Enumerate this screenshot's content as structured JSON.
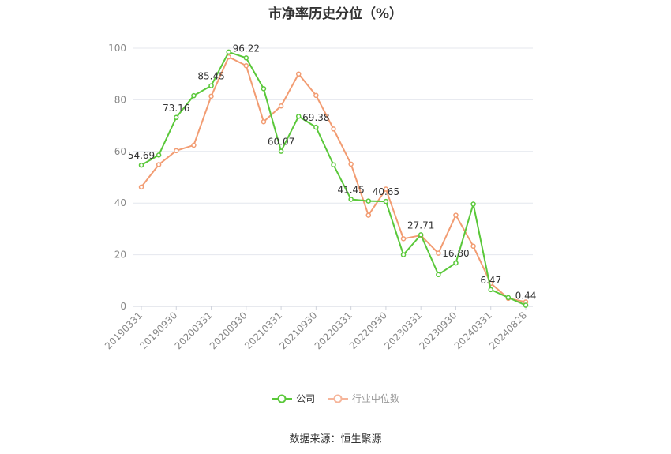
{
  "chart_data": {
    "type": "line",
    "title": "市净率历史分位（%）",
    "xlabel": "",
    "ylabel": "",
    "ylim": [
      0,
      100
    ],
    "yticks": [
      0,
      20,
      40,
      60,
      80,
      100
    ],
    "grid": true,
    "legend_position": "bottom",
    "x": [
      "20190331",
      "20190630",
      "20190930",
      "20191231",
      "20200331",
      "20200630",
      "20200930",
      "20201231",
      "20210331",
      "20210630",
      "20210930",
      "20211231",
      "20220331",
      "20220630",
      "20220930",
      "20221231",
      "20230331",
      "20230630",
      "20230930",
      "20231231",
      "20240331",
      "20240630",
      "20240828"
    ],
    "xtick_labels": [
      "20190331",
      "20190930",
      "20200331",
      "20200930",
      "20210331",
      "20210930",
      "20220331",
      "20220930",
      "20230331",
      "20230930",
      "20240331",
      "20240828"
    ],
    "series": [
      {
        "name": "公司",
        "color": "#5ac83a",
        "values": [
          54.69,
          58.6,
          73.16,
          81.6,
          85.45,
          98.5,
          96.22,
          84.3,
          60.07,
          73.6,
          69.38,
          54.8,
          41.45,
          40.8,
          40.65,
          20.0,
          27.71,
          12.3,
          16.8,
          39.6,
          6.47,
          3.4,
          0.44
        ],
        "labels": {
          "0": "54.69",
          "2": "73.16",
          "4": "85.45",
          "6": "96.22",
          "8": "60.07",
          "10": "69.38",
          "12": "41.45",
          "14": "40.65",
          "16": "27.71",
          "18": "16.80",
          "20": "6.47",
          "22": "0.44"
        }
      },
      {
        "name": "行业中位数",
        "color": "#f29c72",
        "values": [
          46.2,
          54.9,
          60.3,
          62.4,
          81.4,
          96.6,
          93.2,
          71.5,
          77.6,
          90.0,
          81.7,
          68.7,
          55.1,
          35.3,
          45.4,
          26.2,
          27.5,
          20.6,
          35.3,
          23.3,
          8.9,
          3.1,
          1.7
        ]
      }
    ]
  },
  "source": "数据来源：恒生聚源"
}
